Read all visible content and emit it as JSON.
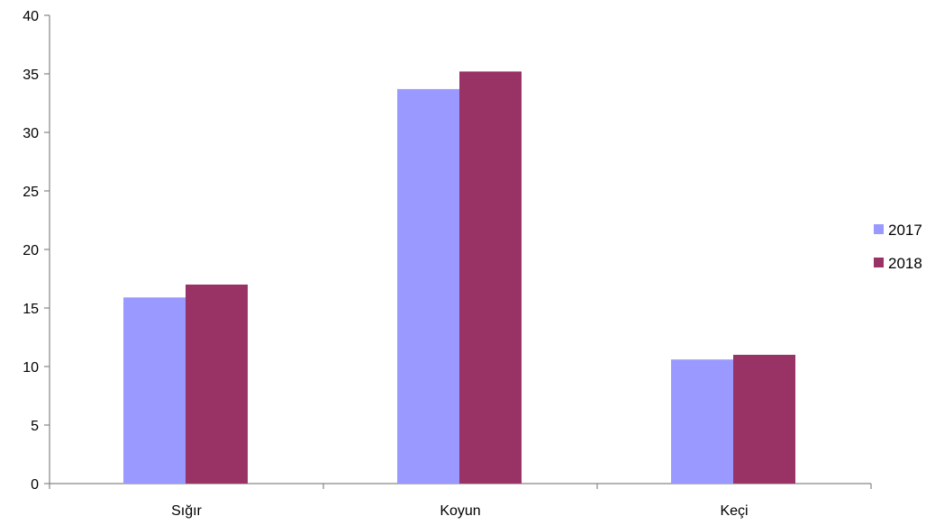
{
  "chart_data": {
    "type": "bar",
    "title": "",
    "xlabel": "",
    "ylabel": "",
    "categories": [
      "Sığır",
      "Koyun",
      "Keçi"
    ],
    "series": [
      {
        "name": "2017",
        "values": [
          15.9,
          33.7,
          10.6
        ],
        "color": "#9999ff"
      },
      {
        "name": "2018",
        "values": [
          17.0,
          35.2,
          11.0
        ],
        "color": "#993366"
      }
    ],
    "ylim": [
      0,
      40
    ],
    "yticks": [
      0,
      5,
      10,
      15,
      20,
      25,
      30,
      35,
      40
    ],
    "ytick_labels": [
      "0",
      "5",
      "10",
      "15",
      "20",
      "25",
      "30",
      "35",
      "40"
    ],
    "grid": false,
    "legend_position": "right"
  }
}
